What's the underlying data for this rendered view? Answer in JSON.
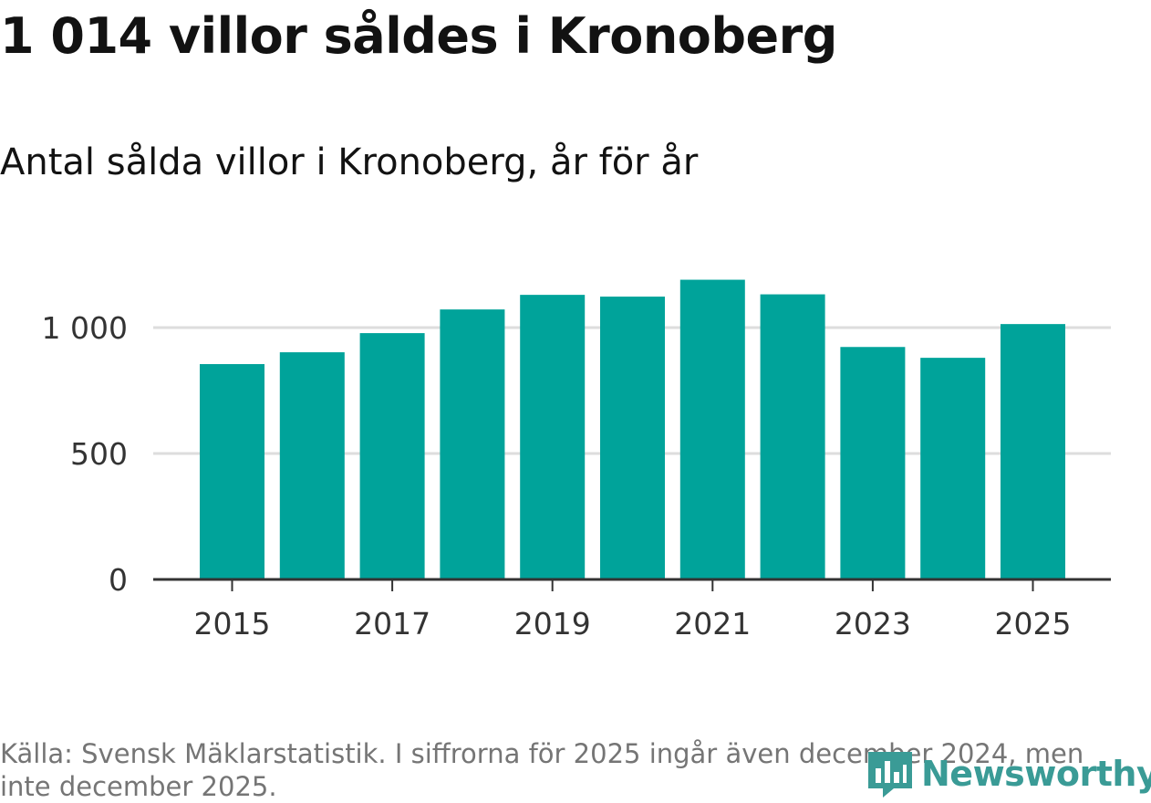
{
  "title": "1 014 villor såldes i Kronoberg",
  "subtitle": "Antal sålda villor i Kronoberg, år för år",
  "source": "Källa: Svensk Mäklarstatistik. I siffrorna för 2025 ingår även december 2024, men inte december 2025.",
  "logo": {
    "text": "Newsworthy",
    "icon": "newsworthy-logo-icon"
  },
  "colors": {
    "bar": "#00a39a",
    "grid": "#dddddd",
    "axis": "#333333",
    "logo": "#3a9b96",
    "source": "#757575"
  },
  "chart_data": {
    "type": "bar",
    "title": "Antal sålda villor i Kronoberg, år för år",
    "categories": [
      "2015",
      "2016",
      "2017",
      "2018",
      "2019",
      "2020",
      "2021",
      "2022",
      "2023",
      "2024",
      "2025"
    ],
    "values": [
      855,
      902,
      978,
      1072,
      1130,
      1123,
      1190,
      1132,
      923,
      880,
      1014
    ],
    "ylim": [
      0,
      1300
    ],
    "yticks": [
      0,
      500,
      1000
    ],
    "ytick_labels": [
      "0",
      "500",
      "1 000"
    ],
    "xtick_labels": [
      "2015",
      "2017",
      "2019",
      "2021",
      "2023",
      "2025"
    ],
    "xlabel": "",
    "ylabel": "",
    "grid": true
  }
}
